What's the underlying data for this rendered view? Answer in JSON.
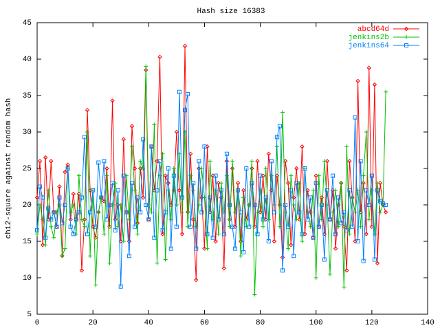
{
  "chart_data": {
    "type": "line",
    "title": "Hash size 16383",
    "ylabel": "chi2-square against random hash",
    "xlim": [
      0,
      140
    ],
    "xticks": [
      0,
      20,
      40,
      60,
      80,
      100,
      120,
      140
    ],
    "ylim": [
      5,
      45
    ],
    "yticks": [
      5,
      10,
      15,
      20,
      25,
      30,
      35,
      40,
      45
    ],
    "legend": "top-right",
    "grid": false,
    "x": [
      0,
      1,
      2,
      3,
      4,
      5,
      6,
      7,
      8,
      9,
      10,
      11,
      12,
      13,
      14,
      15,
      16,
      17,
      18,
      19,
      20,
      21,
      22,
      23,
      24,
      25,
      26,
      27,
      28,
      29,
      30,
      31,
      32,
      33,
      34,
      35,
      36,
      37,
      38,
      39,
      40,
      41,
      42,
      43,
      44,
      45,
      46,
      47,
      48,
      49,
      50,
      51,
      52,
      53,
      54,
      55,
      56,
      57,
      58,
      59,
      60,
      61,
      62,
      63,
      64,
      65,
      66,
      67,
      68,
      69,
      70,
      71,
      72,
      73,
      74,
      75,
      76,
      77,
      78,
      79,
      80,
      81,
      82,
      83,
      84,
      85,
      86,
      87,
      88,
      89,
      90,
      91,
      92,
      93,
      94,
      95,
      96,
      97,
      98,
      99,
      100,
      101,
      102,
      103,
      104,
      105,
      106,
      107,
      108,
      109,
      110,
      111,
      112,
      113,
      114,
      115,
      116,
      117,
      118,
      119,
      120,
      121,
      122,
      123,
      124,
      125
    ],
    "series": [
      {
        "name": "abcd64d",
        "color": "#ff0000",
        "marker": "diamond",
        "values": [
          21,
          26,
          14.5,
          26.5,
          18,
          26,
          19,
          17,
          22.5,
          13,
          24.5,
          25.5,
          18,
          21.5,
          18,
          21.5,
          11,
          18,
          33,
          22,
          17,
          15.5,
          19,
          21,
          20.5,
          25,
          17,
          34.3,
          18,
          20,
          15,
          29,
          19,
          15,
          30.8,
          25,
          17.5,
          25,
          21,
          38.5,
          18,
          28,
          22,
          26,
          40.3,
          16,
          24,
          23,
          20,
          22,
          30,
          22,
          16,
          41.8,
          19,
          27,
          18,
          9.7,
          25,
          21,
          14,
          28,
          19,
          24,
          15,
          23,
          21,
          11.3,
          26,
          18,
          25,
          17,
          23,
          15,
          22,
          18,
          20,
          25,
          17,
          26,
          19,
          24,
          18,
          27,
          22,
          15,
          24,
          20,
          12.8,
          26,
          23,
          14.5,
          21,
          25,
          18,
          28,
          16,
          22,
          19,
          15.5,
          24,
          17,
          21,
          16,
          26,
          18,
          22,
          14,
          20,
          23,
          17,
          11,
          26,
          21,
          15,
          37,
          19,
          23,
          16,
          38.8,
          17,
          36.5,
          12,
          23,
          20,
          19
        ]
      },
      {
        "name": "jenkins2b",
        "color": "#00c000",
        "marker": "plus",
        "values": [
          16,
          20,
          18,
          14.5,
          22,
          17,
          15.5,
          19,
          20,
          13,
          14,
          25,
          19,
          20,
          16,
          24,
          18,
          17,
          30,
          13,
          22,
          9,
          19,
          21,
          16,
          24,
          12,
          20,
          23,
          17,
          20,
          15,
          24,
          18,
          28,
          22,
          16,
          26,
          25,
          39,
          20,
          19,
          31,
          12,
          24,
          27,
          12.5,
          22,
          18,
          25,
          20,
          27,
          19,
          30,
          17,
          24,
          22,
          17,
          20,
          25,
          21,
          14,
          26,
          18,
          22,
          16,
          23,
          19,
          24,
          17,
          26,
          19,
          22,
          13,
          21,
          17,
          20,
          26,
          7.7,
          19,
          22,
          17,
          25,
          18,
          24,
          20,
          28,
          17,
          32.7,
          19,
          14,
          24,
          20,
          18,
          23,
          15,
          25,
          19,
          17,
          22,
          10,
          24,
          18,
          26,
          20,
          10.5,
          19,
          22,
          17,
          23,
          8.7,
          28,
          16,
          21,
          19,
          22,
          17,
          24,
          30,
          18,
          22,
          16,
          23,
          19,
          20,
          35.5
        ]
      },
      {
        "name": "jenkins64",
        "color": "#0080ff",
        "marker": "square",
        "values": [
          16.5,
          22.5,
          21,
          15.5,
          19.5,
          18,
          19,
          17,
          21,
          17.5,
          20,
          25,
          17,
          16,
          18,
          19,
          21,
          29.3,
          16,
          19,
          22,
          17,
          25.8,
          21,
          26,
          18,
          20,
          23,
          16.5,
          22,
          8.8,
          24,
          19,
          13,
          23,
          17,
          21,
          19,
          29,
          20,
          18,
          28,
          15.5,
          22,
          26,
          16.5,
          19,
          25,
          14,
          24,
          17,
          35.5,
          21,
          33,
          35.2,
          17,
          23,
          14,
          26,
          19,
          28,
          16,
          21,
          15.5,
          24,
          18,
          22,
          16,
          27,
          20,
          17,
          14,
          22,
          19,
          13.5,
          25,
          17,
          23,
          20,
          16,
          24,
          18,
          21,
          15,
          26,
          19,
          29.3,
          30.8,
          11,
          20,
          17,
          22,
          13,
          23,
          19,
          16,
          25,
          18,
          21,
          15.5,
          23,
          17,
          20,
          12.5,
          22,
          18,
          24,
          16,
          21,
          17.5,
          19,
          16.5,
          22,
          17,
          32,
          15,
          26,
          12.3,
          22,
          20,
          24,
          12.5,
          22,
          20.5,
          20.2,
          20
        ]
      }
    ]
  }
}
